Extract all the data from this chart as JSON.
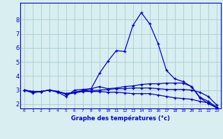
{
  "xlabel": "Graphe des températures (°c)",
  "background_color": "#d8eef0",
  "grid_color": "#aaccd0",
  "line_color": "#0000cc",
  "x_ticks": [
    0,
    1,
    2,
    3,
    4,
    5,
    6,
    7,
    8,
    9,
    10,
    11,
    12,
    13,
    14,
    15,
    16,
    17,
    18,
    19,
    20,
    21,
    22,
    23
  ],
  "y_ticks": [
    2,
    3,
    4,
    5,
    6,
    7,
    8
  ],
  "ylim": [
    1.7,
    9.2
  ],
  "xlim": [
    -0.5,
    23.5
  ],
  "line1": [
    3.0,
    2.8,
    2.9,
    3.0,
    2.85,
    2.55,
    3.0,
    3.05,
    3.1,
    4.2,
    5.05,
    5.8,
    5.75,
    7.6,
    8.5,
    7.7,
    6.3,
    4.4,
    3.8,
    3.6,
    3.25,
    2.45,
    2.05,
    1.75
  ],
  "line2": [
    3.0,
    2.9,
    2.9,
    3.0,
    2.9,
    2.75,
    2.85,
    2.95,
    3.1,
    3.25,
    3.1,
    3.15,
    3.25,
    3.3,
    3.4,
    3.45,
    3.45,
    3.5,
    3.5,
    3.5,
    3.25,
    2.5,
    2.2,
    1.8
  ],
  "line3": [
    3.0,
    2.9,
    2.9,
    3.0,
    2.9,
    2.75,
    2.85,
    2.95,
    2.95,
    3.0,
    3.05,
    3.1,
    3.1,
    3.15,
    3.15,
    3.15,
    3.1,
    3.05,
    3.05,
    3.05,
    3.0,
    2.85,
    2.55,
    1.95
  ],
  "line4": [
    3.0,
    2.9,
    2.9,
    3.0,
    2.9,
    2.7,
    2.8,
    2.9,
    2.9,
    2.9,
    2.85,
    2.85,
    2.8,
    2.75,
    2.75,
    2.75,
    2.65,
    2.55,
    2.45,
    2.4,
    2.35,
    2.2,
    2.1,
    1.75
  ]
}
